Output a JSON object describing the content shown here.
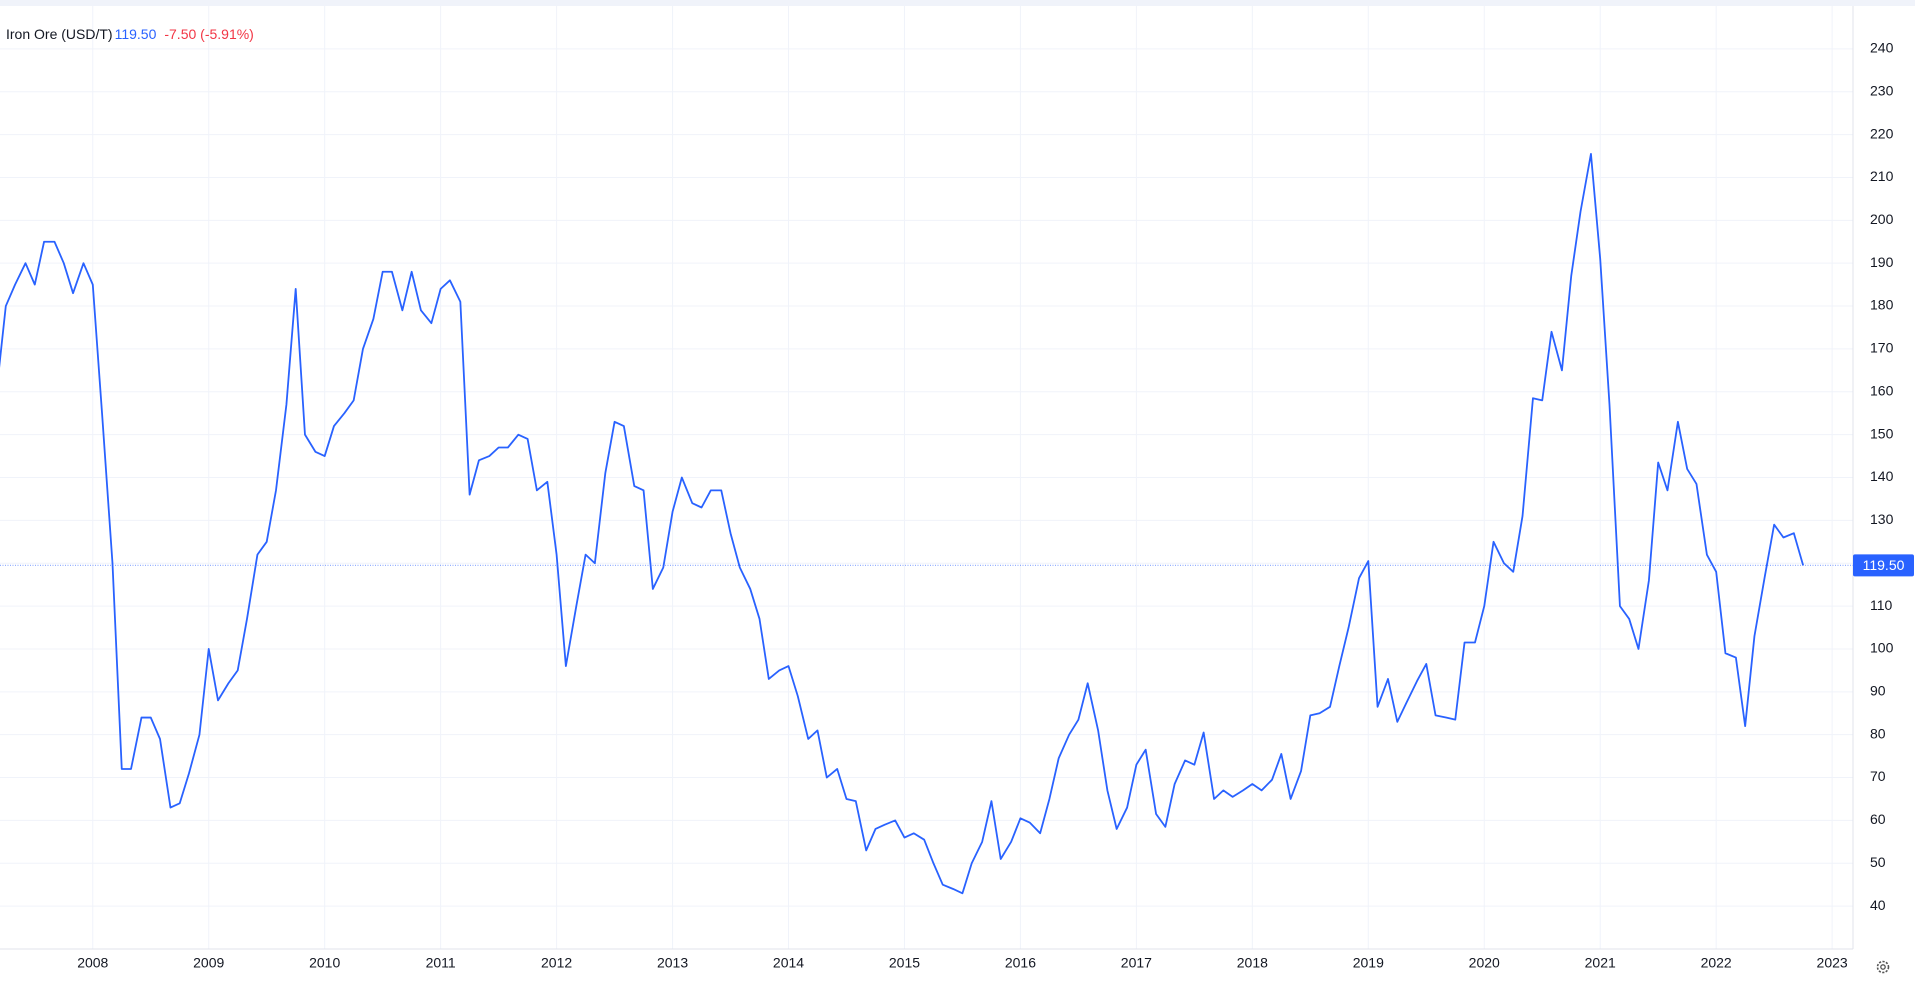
{
  "chart_data": {
    "type": "line",
    "title": "Iron Ore (USD/T)",
    "price": {
      "value": 119.5,
      "label": "119.50"
    },
    "change": "-7.50 (-5.91%)",
    "color": "#2962ff",
    "x": [
      2007.17,
      2007.25,
      2007.33,
      2007.42,
      2007.5,
      2007.58,
      2007.67,
      2007.75,
      2007.83,
      2007.92,
      2008,
      2008.08,
      2008.17,
      2008.25,
      2008.33,
      2008.42,
      2008.5,
      2008.58,
      2008.67,
      2008.75,
      2008.83,
      2008.92,
      2009,
      2009.08,
      2009.17,
      2009.25,
      2009.33,
      2009.42,
      2009.5,
      2009.58,
      2009.67,
      2009.75,
      2009.83,
      2009.92,
      2010,
      2010.08,
      2010.17,
      2010.25,
      2010.33,
      2010.42,
      2010.5,
      2010.58,
      2010.67,
      2010.75,
      2010.83,
      2010.92,
      2011,
      2011.08,
      2011.17,
      2011.25,
      2011.33,
      2011.42,
      2011.5,
      2011.58,
      2011.67,
      2011.75,
      2011.83,
      2011.92,
      2012,
      2012.08,
      2012.17,
      2012.25,
      2012.33,
      2012.42,
      2012.5,
      2012.58,
      2012.67,
      2012.75,
      2012.83,
      2012.92,
      2013,
      2013.08,
      2013.17,
      2013.25,
      2013.33,
      2013.42,
      2013.5,
      2013.58,
      2013.67,
      2013.75,
      2013.83,
      2013.92,
      2014,
      2014.08,
      2014.17,
      2014.25,
      2014.33,
      2014.42,
      2014.5,
      2014.58,
      2014.67,
      2014.75,
      2014.83,
      2014.92,
      2015,
      2015.08,
      2015.17,
      2015.25,
      2015.33,
      2015.42,
      2015.5,
      2015.58,
      2015.67,
      2015.75,
      2015.83,
      2015.92,
      2016,
      2016.08,
      2016.17,
      2016.25,
      2016.33,
      2016.42,
      2016.5,
      2016.58,
      2016.67,
      2016.75,
      2016.83,
      2016.92,
      2017,
      2017.08,
      2017.17,
      2017.25,
      2017.33,
      2017.42,
      2017.5,
      2017.58,
      2017.67,
      2017.75,
      2017.83,
      2017.92,
      2018,
      2018.08,
      2018.17,
      2018.25,
      2018.33,
      2018.42,
      2018.5,
      2018.58,
      2018.67,
      2018.75,
      2018.83,
      2018.92,
      2019,
      2019.08,
      2019.17,
      2019.25,
      2019.33,
      2019.42,
      2019.5,
      2019.58,
      2019.67,
      2019.75,
      2019.83,
      2019.92,
      2020,
      2020.08,
      2020.17,
      2020.25,
      2020.33,
      2020.42,
      2020.5,
      2020.58,
      2020.67,
      2020.75,
      2020.83,
      2020.92,
      2021,
      2021.08,
      2021.17,
      2021.25,
      2021.33,
      2021.42,
      2021.5,
      2021.58,
      2021.67,
      2021.75,
      2021.83,
      2021.92,
      2022,
      2022.08,
      2022.17,
      2022.25,
      2022.33,
      2022.42,
      2022.5,
      2022.58,
      2022.67,
      2022.75
    ],
    "values": [
      160,
      180,
      185,
      190,
      185,
      195,
      195,
      190,
      183,
      190,
      185,
      155,
      120,
      72,
      72,
      84,
      84,
      79,
      63,
      64,
      71,
      80,
      100,
      88,
      92,
      95,
      107,
      122,
      125,
      137,
      157,
      184,
      150,
      146,
      145,
      152,
      155,
      158,
      170,
      177,
      188,
      188,
      179,
      188,
      179,
      176,
      184,
      186,
      181,
      136,
      144,
      145,
      147,
      147,
      150,
      149,
      137,
      139,
      122,
      96,
      110,
      122,
      120,
      141,
      153,
      152,
      138,
      137,
      114,
      119,
      132,
      140,
      134,
      133,
      137,
      137,
      127,
      119,
      114,
      107,
      93,
      95,
      96,
      89,
      79,
      81,
      70,
      72,
      65,
      64.5,
      53,
      58,
      59,
      60,
      56,
      57,
      55.5,
      50,
      45,
      44,
      43,
      50,
      55,
      64.5,
      51,
      55,
      60.5,
      59.5,
      57,
      65,
      74.5,
      80,
      83.5,
      92,
      81,
      67,
      58,
      63,
      73,
      76.5,
      61.5,
      58.5,
      68.5,
      74,
      73,
      80.5,
      65,
      67,
      65.5,
      67,
      68.5,
      67,
      69.5,
      75.5,
      65,
      71.5,
      84.5,
      85,
      86.5,
      96,
      105,
      116.5,
      120.5,
      86.5,
      93,
      83,
      87.5,
      92.5,
      96.5,
      84.5,
      84,
      83.5,
      101.5,
      101.5,
      110,
      125,
      120,
      118,
      131,
      158.5,
      158,
      174,
      165,
      187,
      202,
      215.5,
      191,
      157,
      110,
      107,
      100,
      116,
      143.5,
      137,
      153,
      142,
      138.5,
      122,
      118,
      99,
      98,
      82,
      103,
      117,
      129,
      126,
      127,
      119.5
    ],
    "xlim": [
      2007.2,
      2023.18
    ],
    "xticks": [
      2008,
      2009,
      2010,
      2011,
      2012,
      2013,
      2014,
      2015,
      2016,
      2017,
      2018,
      2019,
      2020,
      2021,
      2022,
      2023
    ],
    "ylim": [
      30,
      250
    ],
    "yticks": [
      40,
      50,
      60,
      70,
      80,
      90,
      100,
      110,
      120,
      130,
      140,
      150,
      160,
      170,
      180,
      190,
      200,
      210,
      220,
      230,
      240
    ],
    "grid": true
  }
}
